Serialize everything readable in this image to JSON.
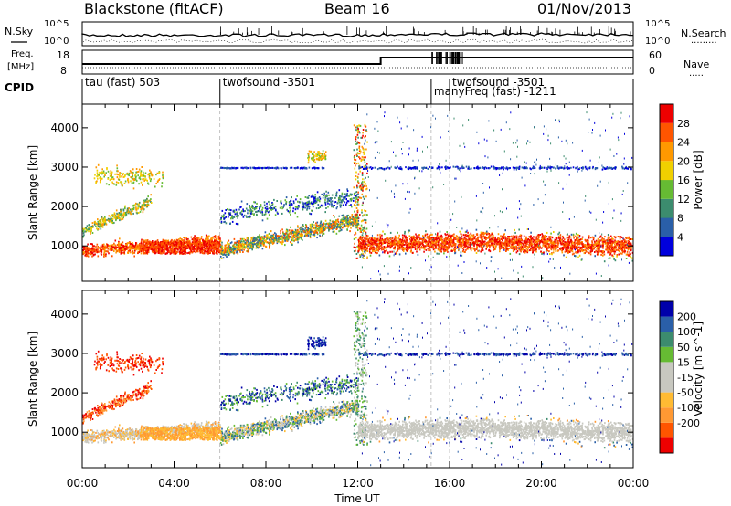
{
  "header": {
    "site": "Blackstone (fitACF)",
    "beam": "Beam 16",
    "date": "01/Nov/2013"
  },
  "summary_labels": {
    "nsky": "N.Sky",
    "nsearch": "N.Search",
    "nsearch_dots": "·········",
    "freq_line1": "Freq.",
    "freq_line2": "[MHz]",
    "nave": "Nave",
    "nave_dots": "·····",
    "cpid": "CPID",
    "nsky_tick_top": "10^5",
    "nsky_tick_bot": "10^0",
    "nsearch_tick_top": "10^5",
    "nsearch_tick_bot": "10^0",
    "freq_tick_top": "18",
    "freq_tick_bot": "8",
    "nave_tick_top": "60",
    "nave_tick_bot": "0"
  },
  "cpid_segments": [
    {
      "start_hour": 0.0,
      "label": "tau (fast) 503"
    },
    {
      "start_hour": 6.0,
      "label": "twofsound -3501"
    },
    {
      "start_hour": 15.2,
      "label": "manyFreq (fast) -1211"
    },
    {
      "start_hour": 16.0,
      "label": "twofsound -3501"
    }
  ],
  "colors": {
    "power": [
      "#0000dd",
      "#2a5fa8",
      "#3c8c6e",
      "#66bb33",
      "#f0d000",
      "#ff9900",
      "#ff5500",
      "#ee0000"
    ],
    "velocity": [
      "#ee0000",
      "#ff5500",
      "#ff9933",
      "#ffbb33",
      "#c8c8c0",
      "#c8c8c0",
      "#66bb33",
      "#3c8c6e",
      "#2a5fa8",
      "#0000aa"
    ]
  },
  "chart_data": [
    {
      "type": "heatmap",
      "name": "power",
      "ylabel": "Slant Range [km]",
      "ylim": [
        100,
        4600
      ],
      "xlim": [
        0,
        24
      ],
      "yticks": [
        1000,
        2000,
        3000,
        4000
      ],
      "colorbar": {
        "label": "Power [dB]",
        "ticks": [
          "4",
          "8",
          "12",
          "16",
          "20",
          "24",
          "28"
        ]
      }
    },
    {
      "type": "heatmap",
      "name": "velocity",
      "ylabel": "Slant Range [km]",
      "xlabel": "Time UT",
      "ylim": [
        100,
        4600
      ],
      "xlim": [
        0,
        24
      ],
      "yticks": [
        1000,
        2000,
        3000,
        4000
      ],
      "xticks": [
        "00:00",
        "04:00",
        "08:00",
        "12:00",
        "16:00",
        "20:00",
        "00:00"
      ],
      "colorbar": {
        "label": "Velocity [m s^-1]",
        "ticks": [
          "200",
          "100",
          "50",
          "15",
          "-15",
          "-50",
          "-100",
          "-200"
        ]
      }
    }
  ]
}
